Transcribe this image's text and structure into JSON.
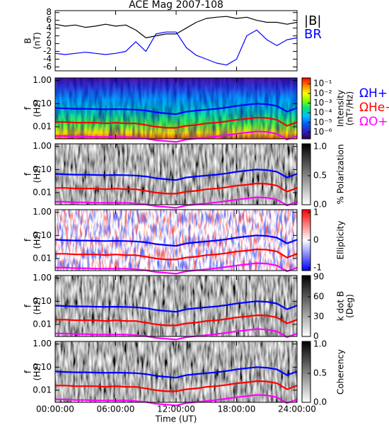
{
  "chart_data": [
    {
      "type": "line",
      "title": "ACE Mag 2007-108",
      "ylabel": [
        "B",
        "(nT)"
      ],
      "x": [
        0,
        1,
        2,
        3,
        4,
        5,
        6,
        7,
        8,
        9,
        10,
        11,
        12,
        13,
        14,
        15,
        16,
        17,
        18,
        19,
        20,
        21,
        22,
        23,
        24
      ],
      "xlim": [
        0,
        24
      ],
      "ylim": [
        -7,
        8.5
      ],
      "yticks": [
        -6,
        -4,
        -2,
        0,
        2,
        4,
        6,
        8
      ],
      "series": [
        {
          "name": "|B|",
          "color": "#000000",
          "values": [
            5,
            4.5,
            4.8,
            4.2,
            4.5,
            5,
            4.5,
            4.8,
            3.5,
            1.5,
            2,
            2.5,
            2.5,
            4,
            5.5,
            6.5,
            6.8,
            7,
            6.5,
            6.8,
            6,
            5.5,
            5.5,
            5,
            5.5
          ]
        },
        {
          "name": "BR",
          "color": "#0000ff",
          "values": [
            -2.5,
            -2.8,
            -2.5,
            -2.2,
            -2.5,
            -2.8,
            -2.5,
            -2,
            0.5,
            -2,
            2.5,
            3,
            3,
            -1,
            -3,
            -4,
            -5,
            -5.5,
            -4,
            2,
            3.5,
            1,
            -0.5,
            1,
            1.5
          ]
        }
      ]
    },
    {
      "type": "spectrogram",
      "ylabel": [
        "f",
        "(Hz)"
      ],
      "ylog": true,
      "x": [
        0,
        1,
        2,
        3,
        4,
        5,
        6,
        7,
        8,
        9,
        10,
        11,
        12,
        13,
        14,
        15,
        16,
        17,
        18,
        19,
        20,
        21,
        22,
        23,
        24
      ],
      "xlim": [
        0,
        24
      ],
      "ylim": [
        0.003,
        1.3
      ],
      "yticks": [
        {
          "value": 1,
          "label": "1.00"
        },
        {
          "value": 0.1,
          "label": "0.10"
        },
        {
          "value": 0.01,
          "label": "0.01"
        }
      ],
      "zlabel": [
        "Intensity",
        "(nT²/Hz)"
      ],
      "zlog": true,
      "zlim": [
        2e-07,
        0.4
      ],
      "zticks": [
        {
          "value": 0.1,
          "label": "10⁻¹"
        },
        {
          "value": 0.01,
          "label": "10⁻²"
        },
        {
          "value": 0.001,
          "label": "10⁻³"
        },
        {
          "value": 0.0001,
          "label": "10⁻⁴"
        },
        {
          "value": 1e-05,
          "label": "10⁻⁵"
        },
        {
          "value": 1e-06,
          "label": "10⁻⁶"
        }
      ],
      "zcolors": [
        "#2a0060",
        "#3020c0",
        "#0060ff",
        "#00c0ff",
        "#00e080",
        "#80ff00",
        "#ffff00",
        "#ff8000",
        "#ff0000"
      ],
      "series": [
        {
          "name": "ΩH+",
          "color": "#0000ff",
          "values": [
            0.065,
            0.062,
            0.06,
            0.06,
            0.058,
            0.057,
            0.058,
            0.057,
            0.055,
            0.05,
            0.042,
            0.038,
            0.035,
            0.045,
            0.05,
            0.055,
            0.06,
            0.068,
            0.08,
            0.09,
            0.1,
            0.095,
            0.08,
            0.045,
            0.065
          ]
        },
        {
          "name": "ΩHe+",
          "color": "#ff0000",
          "values": [
            0.016,
            0.016,
            0.015,
            0.015,
            0.015,
            0.014,
            0.015,
            0.014,
            0.014,
            0.012,
            0.01,
            0.009,
            0.009,
            0.011,
            0.012,
            0.014,
            0.015,
            0.017,
            0.02,
            0.022,
            0.025,
            0.024,
            0.02,
            0.011,
            0.016
          ]
        },
        {
          "name": "ΩO+",
          "color": "#ff00ff",
          "values": [
            0.004,
            0.004,
            0.0038,
            0.0038,
            0.0036,
            0.0036,
            0.0036,
            0.0036,
            0.0034,
            0.0031,
            0.0026,
            0.0024,
            0.0022,
            0.0028,
            0.0031,
            0.0034,
            0.0038,
            0.0043,
            0.005,
            0.0056,
            0.0063,
            0.006,
            0.005,
            0.0028,
            0.004
          ]
        }
      ]
    },
    {
      "type": "spectrogram",
      "ylabel": [
        "f",
        "(Hz)"
      ],
      "ylog": true,
      "x": [
        0,
        1,
        2,
        3,
        4,
        5,
        6,
        7,
        8,
        9,
        10,
        11,
        12,
        13,
        14,
        15,
        16,
        17,
        18,
        19,
        20,
        21,
        22,
        23,
        24
      ],
      "xlim": [
        0,
        24
      ],
      "ylim": [
        0.003,
        1.3
      ],
      "yticks": [
        {
          "value": 1,
          "label": "1.00"
        },
        {
          "value": 0.1,
          "label": "0.10"
        },
        {
          "value": 0.01,
          "label": "0.01"
        }
      ],
      "zlabel": [
        "% Polarization"
      ],
      "zlim": [
        0,
        1.05
      ],
      "zticks": [
        {
          "value": 0,
          "label": "0.0"
        },
        {
          "value": 0.5,
          "label": "0.5"
        },
        {
          "value": 1,
          "label": "1.0"
        }
      ],
      "zcolors": [
        "#ffffff",
        "#000000"
      ],
      "series": [
        {
          "color": "#0000ff",
          "values": [
            0.065,
            0.062,
            0.06,
            0.06,
            0.058,
            0.057,
            0.058,
            0.057,
            0.055,
            0.05,
            0.042,
            0.038,
            0.035,
            0.045,
            0.05,
            0.055,
            0.06,
            0.068,
            0.08,
            0.09,
            0.1,
            0.095,
            0.08,
            0.045,
            0.065
          ]
        },
        {
          "color": "#ff0000",
          "values": [
            0.016,
            0.016,
            0.015,
            0.015,
            0.015,
            0.014,
            0.015,
            0.014,
            0.014,
            0.012,
            0.01,
            0.009,
            0.009,
            0.011,
            0.012,
            0.014,
            0.015,
            0.017,
            0.02,
            0.022,
            0.025,
            0.024,
            0.02,
            0.011,
            0.016
          ]
        },
        {
          "color": "#ff00ff",
          "values": [
            0.004,
            0.004,
            0.0038,
            0.0038,
            0.0036,
            0.0036,
            0.0036,
            0.0036,
            0.0034,
            0.0031,
            0.0026,
            0.0024,
            0.0022,
            0.0028,
            0.0031,
            0.0034,
            0.0038,
            0.0043,
            0.005,
            0.0056,
            0.0063,
            0.006,
            0.005,
            0.0028,
            0.004
          ]
        }
      ]
    },
    {
      "type": "spectrogram",
      "ylabel": [
        "f",
        "(Hz)"
      ],
      "ylog": true,
      "x": [
        0,
        1,
        2,
        3,
        4,
        5,
        6,
        7,
        8,
        9,
        10,
        11,
        12,
        13,
        14,
        15,
        16,
        17,
        18,
        19,
        20,
        21,
        22,
        23,
        24
      ],
      "xlim": [
        0,
        24
      ],
      "ylim": [
        0.003,
        1.3
      ],
      "yticks": [
        {
          "value": 1,
          "label": "1.00"
        },
        {
          "value": 0.1,
          "label": "0.10"
        },
        {
          "value": 0.01,
          "label": "0.01"
        }
      ],
      "zlabel": [
        "Ellipticity"
      ],
      "zlim": [
        -1.1,
        1.1
      ],
      "zticks": [
        -1,
        0,
        1
      ],
      "zcolors": [
        "#0000ff",
        "#ffffff",
        "#ff0000"
      ],
      "series": [
        {
          "color": "#0000ff",
          "values": [
            0.065,
            0.062,
            0.06,
            0.06,
            0.058,
            0.057,
            0.058,
            0.057,
            0.055,
            0.05,
            0.042,
            0.038,
            0.035,
            0.045,
            0.05,
            0.055,
            0.06,
            0.068,
            0.08,
            0.09,
            0.1,
            0.095,
            0.08,
            0.045,
            0.065
          ]
        },
        {
          "color": "#ff0000",
          "values": [
            0.016,
            0.016,
            0.015,
            0.015,
            0.015,
            0.014,
            0.015,
            0.014,
            0.014,
            0.012,
            0.01,
            0.009,
            0.009,
            0.011,
            0.012,
            0.014,
            0.015,
            0.017,
            0.02,
            0.022,
            0.025,
            0.024,
            0.02,
            0.011,
            0.016
          ]
        },
        {
          "color": "#ff00ff",
          "values": [
            0.004,
            0.004,
            0.0038,
            0.0038,
            0.0036,
            0.0036,
            0.0036,
            0.0036,
            0.0034,
            0.0031,
            0.0026,
            0.0024,
            0.0022,
            0.0028,
            0.0031,
            0.0034,
            0.0038,
            0.0043,
            0.005,
            0.0056,
            0.0063,
            0.006,
            0.005,
            0.0028,
            0.004
          ]
        }
      ]
    },
    {
      "type": "spectrogram",
      "ylabel": [
        "f",
        "(Hz)"
      ],
      "ylog": true,
      "x": [
        0,
        1,
        2,
        3,
        4,
        5,
        6,
        7,
        8,
        9,
        10,
        11,
        12,
        13,
        14,
        15,
        16,
        17,
        18,
        19,
        20,
        21,
        22,
        23,
        24
      ],
      "xlim": [
        0,
        24
      ],
      "ylim": [
        0.003,
        1.3
      ],
      "yticks": [
        {
          "value": 1,
          "label": "1.00"
        },
        {
          "value": 0.1,
          "label": "0.10"
        },
        {
          "value": 0.01,
          "label": "0.01"
        }
      ],
      "zlabel": [
        "k dot B",
        "(Deg)"
      ],
      "zlim": [
        0,
        92
      ],
      "zticks": [
        0,
        30,
        60,
        90
      ],
      "zcolors": [
        "#ffffff",
        "#000000"
      ],
      "series": [
        {
          "color": "#0000ff",
          "values": [
            0.065,
            0.062,
            0.06,
            0.06,
            0.058,
            0.057,
            0.058,
            0.057,
            0.055,
            0.05,
            0.042,
            0.038,
            0.035,
            0.045,
            0.05,
            0.055,
            0.06,
            0.068,
            0.08,
            0.09,
            0.1,
            0.095,
            0.08,
            0.045,
            0.065
          ]
        },
        {
          "color": "#ff0000",
          "values": [
            0.016,
            0.016,
            0.015,
            0.015,
            0.015,
            0.014,
            0.015,
            0.014,
            0.014,
            0.012,
            0.01,
            0.009,
            0.009,
            0.011,
            0.012,
            0.014,
            0.015,
            0.017,
            0.02,
            0.022,
            0.025,
            0.024,
            0.02,
            0.011,
            0.016
          ]
        },
        {
          "color": "#ff00ff",
          "values": [
            0.004,
            0.004,
            0.0038,
            0.0038,
            0.0036,
            0.0036,
            0.0036,
            0.0036,
            0.0034,
            0.0031,
            0.0026,
            0.0024,
            0.0022,
            0.0028,
            0.0031,
            0.0034,
            0.0038,
            0.0043,
            0.005,
            0.0056,
            0.0063,
            0.006,
            0.005,
            0.0028,
            0.004
          ]
        }
      ]
    },
    {
      "type": "spectrogram",
      "ylabel": [
        "f",
        "(Hz)"
      ],
      "ylog": true,
      "xlabel": "Time (UT)",
      "x": [
        0,
        1,
        2,
        3,
        4,
        5,
        6,
        7,
        8,
        9,
        10,
        11,
        12,
        13,
        14,
        15,
        16,
        17,
        18,
        19,
        20,
        21,
        22,
        23,
        24
      ],
      "xlim": [
        0,
        24
      ],
      "ylim": [
        0.003,
        1.3
      ],
      "xticks": [
        {
          "value": 0,
          "label": "00:00:00"
        },
        {
          "value": 6,
          "label": "06:00:00"
        },
        {
          "value": 12,
          "label": "12:00:00"
        },
        {
          "value": 18,
          "label": "18:00:00"
        },
        {
          "value": 24,
          "label": "24:00:00"
        }
      ],
      "yticks": [
        {
          "value": 1,
          "label": "1.00"
        },
        {
          "value": 0.1,
          "label": "0.10"
        },
        {
          "value": 0.01,
          "label": "0.01"
        }
      ],
      "zlabel": [
        "Coherency"
      ],
      "zlim": [
        0,
        1.05
      ],
      "zticks": [
        {
          "value": 0,
          "label": "0.0"
        },
        {
          "value": 0.5,
          "label": "0.5"
        },
        {
          "value": 1,
          "label": "1.0"
        }
      ],
      "zcolors": [
        "#ffffff",
        "#000000"
      ],
      "series": [
        {
          "color": "#0000ff",
          "values": [
            0.065,
            0.062,
            0.06,
            0.06,
            0.058,
            0.057,
            0.058,
            0.057,
            0.055,
            0.05,
            0.042,
            0.038,
            0.035,
            0.045,
            0.05,
            0.055,
            0.06,
            0.068,
            0.08,
            0.09,
            0.1,
            0.095,
            0.08,
            0.045,
            0.065
          ]
        },
        {
          "color": "#ff0000",
          "values": [
            0.016,
            0.016,
            0.015,
            0.015,
            0.015,
            0.014,
            0.015,
            0.014,
            0.014,
            0.012,
            0.01,
            0.009,
            0.009,
            0.011,
            0.012,
            0.014,
            0.015,
            0.017,
            0.02,
            0.022,
            0.025,
            0.024,
            0.02,
            0.011,
            0.016
          ]
        },
        {
          "color": "#ff00ff",
          "values": [
            0.004,
            0.004,
            0.0038,
            0.0038,
            0.0036,
            0.0036,
            0.0036,
            0.0036,
            0.0034,
            0.0031,
            0.0026,
            0.0024,
            0.0022,
            0.0028,
            0.0031,
            0.0034,
            0.0038,
            0.0043,
            0.005,
            0.0056,
            0.0063,
            0.006,
            0.005,
            0.0028,
            0.004
          ]
        }
      ]
    }
  ]
}
